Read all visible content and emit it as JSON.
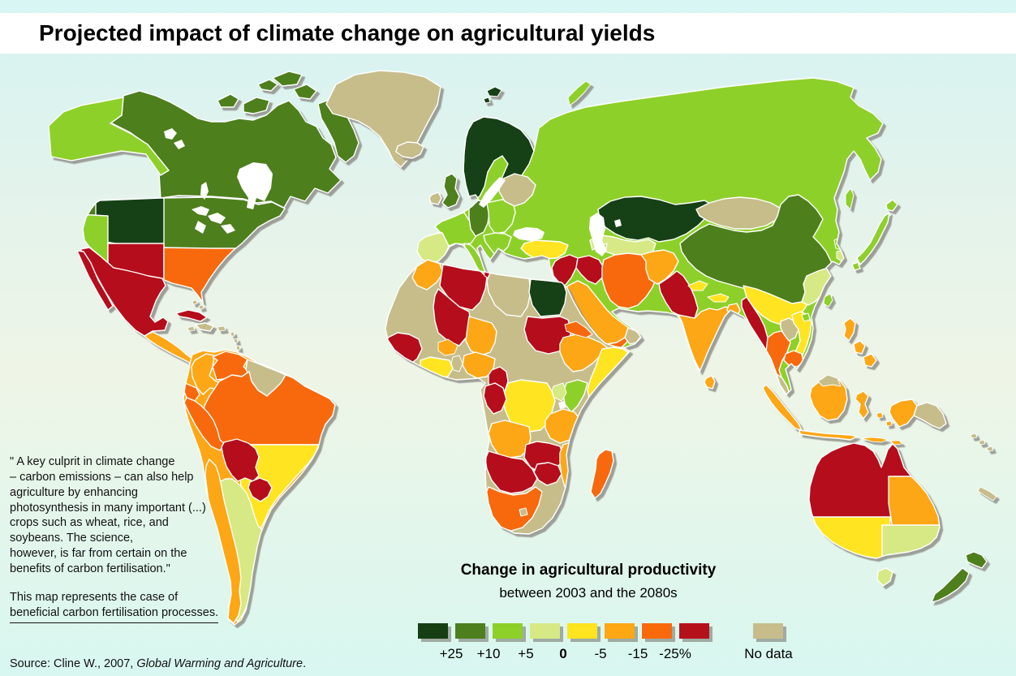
{
  "header": {
    "title": "Projected impact of climate change on agricultural yields"
  },
  "quote": {
    "lines": [
      "\" A key culprit in climate change",
      "– carbon emissions – can also help",
      "agriculture by enhancing",
      "photosynthesis in many important (...)",
      "crops such as wheat, rice, and",
      "soybeans. The science,",
      "however, is far from certain on the",
      "benefits of carbon fertilisation.\""
    ]
  },
  "note": {
    "lines": [
      "This map represents the case of",
      "beneficial carbon fertilisation processes."
    ]
  },
  "source": {
    "prefix": "Source: Cline W., 2007, ",
    "work": "Global Warming and Agriculture",
    "suffix": "."
  },
  "legend": {
    "title": "Change in agricultural productivity",
    "subtitle": "between 2003 and the 2080s",
    "boundary_labels": [
      "+25",
      "+10",
      "+5",
      "0",
      "-5",
      "-15",
      "-25%"
    ],
    "bold_label": "0",
    "no_data_label": "No data",
    "classes_order": [
      "p25",
      "p10",
      "p5",
      "z0",
      "m5",
      "m15",
      "m25",
      "m25plus"
    ],
    "palette": {
      "p25": "#153f13",
      "p10": "#4d7f1f",
      "p5": "#8ed02a",
      "z0": "#d6e985",
      "m5": "#ffe420",
      "m15": "#fda713",
      "m25": "#f8690b",
      "m25plus": "#b5111a",
      "nodata": "#c6bd8a"
    },
    "sea_color": "#ffffff",
    "border_color": "#ffffff",
    "shadow_color": "#90918a"
  },
  "map": {
    "regions": [
      {
        "id": "alaska",
        "class": "p5"
      },
      {
        "id": "canada",
        "class": "p10"
      },
      {
        "id": "arctic-islands",
        "class": "p10"
      },
      {
        "id": "greenland",
        "class": "nodata"
      },
      {
        "id": "us-base",
        "class": "p10"
      },
      {
        "id": "us-northwest",
        "class": "p25"
      },
      {
        "id": "us-california",
        "class": "p5"
      },
      {
        "id": "us-southwest",
        "class": "m25plus"
      },
      {
        "id": "us-southeast",
        "class": "m25"
      },
      {
        "id": "mexico",
        "class": "m25plus"
      },
      {
        "id": "baja",
        "class": "m25plus"
      },
      {
        "id": "central-america",
        "class": "m15"
      },
      {
        "id": "cuba",
        "class": "m25plus"
      },
      {
        "id": "hispaniola",
        "class": "nodata"
      },
      {
        "id": "caribbean-islands",
        "class": "nodata"
      },
      {
        "id": "sa-base",
        "class": "m15"
      },
      {
        "id": "colombia",
        "class": "m15"
      },
      {
        "id": "venezuela",
        "class": "m25"
      },
      {
        "id": "guianas",
        "class": "nodata"
      },
      {
        "id": "ecuador",
        "class": "m25"
      },
      {
        "id": "peru",
        "class": "m25"
      },
      {
        "id": "brazil-north",
        "class": "m25"
      },
      {
        "id": "brazil-south",
        "class": "m5"
      },
      {
        "id": "bolivia",
        "class": "m25plus"
      },
      {
        "id": "paraguay",
        "class": "m25plus"
      },
      {
        "id": "argentina",
        "class": "z0"
      },
      {
        "id": "chile",
        "class": "m15"
      },
      {
        "id": "uruguay",
        "class": "nodata"
      },
      {
        "id": "iceland",
        "class": "nodata"
      },
      {
        "id": "ireland",
        "class": "nodata"
      },
      {
        "id": "uk",
        "class": "p10"
      },
      {
        "id": "svalbard",
        "class": "p25"
      },
      {
        "id": "novaya-zemlya",
        "class": "p5"
      },
      {
        "id": "eurasia-base",
        "class": "p5"
      },
      {
        "id": "scandinavia",
        "class": "p25"
      },
      {
        "id": "iberia",
        "class": "z0"
      },
      {
        "id": "france",
        "class": "p5"
      },
      {
        "id": "germany",
        "class": "p10"
      },
      {
        "id": "central-europe",
        "class": "p5"
      },
      {
        "id": "baltics",
        "class": "nodata"
      },
      {
        "id": "balkans",
        "class": "p5"
      },
      {
        "id": "greece",
        "class": "p25"
      },
      {
        "id": "italy",
        "class": "p5"
      },
      {
        "id": "turkey",
        "class": "m5"
      },
      {
        "id": "kazakhstan",
        "class": "p25"
      },
      {
        "id": "central-asia",
        "class": "z0"
      },
      {
        "id": "levant",
        "class": "m25plus"
      },
      {
        "id": "iraq",
        "class": "m25plus"
      },
      {
        "id": "iran",
        "class": "m25"
      },
      {
        "id": "afghanistan",
        "class": "m15"
      },
      {
        "id": "pakistan",
        "class": "m25plus"
      },
      {
        "id": "india",
        "class": "m15"
      },
      {
        "id": "kashmir-nepal",
        "class": "m5"
      },
      {
        "id": "bangladesh",
        "class": "m15"
      },
      {
        "id": "sri-lanka",
        "class": "m15"
      },
      {
        "id": "saudi",
        "class": "m15"
      },
      {
        "id": "yemen",
        "class": "m25"
      },
      {
        "id": "oman",
        "class": "nodata"
      },
      {
        "id": "mongolia",
        "class": "nodata"
      },
      {
        "id": "china-north",
        "class": "p10"
      },
      {
        "id": "china-south",
        "class": "m5"
      },
      {
        "id": "china-southeast",
        "class": "z0"
      },
      {
        "id": "north-korea",
        "class": "p5"
      },
      {
        "id": "south-korea",
        "class": "z0"
      },
      {
        "id": "japan",
        "class": "p5"
      },
      {
        "id": "sakhalin",
        "class": "p5"
      },
      {
        "id": "taiwan",
        "class": "p5"
      },
      {
        "id": "hainan",
        "class": "p5"
      },
      {
        "id": "myanmar",
        "class": "m25plus"
      },
      {
        "id": "thailand",
        "class": "m25"
      },
      {
        "id": "laos",
        "class": "nodata"
      },
      {
        "id": "vietnam",
        "class": "m5"
      },
      {
        "id": "cambodia",
        "class": "m25"
      },
      {
        "id": "malay-peninsula",
        "class": "nodata"
      },
      {
        "id": "sumatra",
        "class": "m15"
      },
      {
        "id": "java",
        "class": "m15"
      },
      {
        "id": "borneo",
        "class": "m15"
      },
      {
        "id": "borneo-malaysia",
        "class": "nodata"
      },
      {
        "id": "sulawesi",
        "class": "m15"
      },
      {
        "id": "lesser-sunda",
        "class": "m15"
      },
      {
        "id": "philippines",
        "class": "m15"
      },
      {
        "id": "new-guinea-west",
        "class": "m15"
      },
      {
        "id": "new-guinea-east",
        "class": "nodata"
      },
      {
        "id": "solomons",
        "class": "nodata"
      },
      {
        "id": "new-caledonia",
        "class": "nodata"
      },
      {
        "id": "africa-base",
        "class": "nodata"
      },
      {
        "id": "morocco",
        "class": "m15"
      },
      {
        "id": "algeria",
        "class": "m25plus"
      },
      {
        "id": "tunisia",
        "class": "m25plus"
      },
      {
        "id": "libya",
        "class": "nodata"
      },
      {
        "id": "egypt",
        "class": "p25"
      },
      {
        "id": "mali",
        "class": "m25plus"
      },
      {
        "id": "niger",
        "class": "m15"
      },
      {
        "id": "sudan",
        "class": "m25plus"
      },
      {
        "id": "senegal-guinea",
        "class": "m25plus"
      },
      {
        "id": "sierra-liberia",
        "class": "m25"
      },
      {
        "id": "burkina",
        "class": "m15"
      },
      {
        "id": "ivory-ghana",
        "class": "m5"
      },
      {
        "id": "togo-benin",
        "class": "nodata"
      },
      {
        "id": "nigeria",
        "class": "m15"
      },
      {
        "id": "cameroon",
        "class": "m25plus"
      },
      {
        "id": "ethiopia",
        "class": "m15"
      },
      {
        "id": "eritrea",
        "class": "m25"
      },
      {
        "id": "somalia",
        "class": "m5"
      },
      {
        "id": "kenya",
        "class": "p5"
      },
      {
        "id": "uganda",
        "class": "z0"
      },
      {
        "id": "drc",
        "class": "m5"
      },
      {
        "id": "congo-gabon",
        "class": "m25plus"
      },
      {
        "id": "tanzania",
        "class": "m15"
      },
      {
        "id": "angola",
        "class": "m15"
      },
      {
        "id": "zambia",
        "class": "m25plus"
      },
      {
        "id": "malawi-mozambique",
        "class": "m15"
      },
      {
        "id": "zimbabwe",
        "class": "m25plus"
      },
      {
        "id": "namibia-botswana",
        "class": "m25plus"
      },
      {
        "id": "south-africa",
        "class": "m25"
      },
      {
        "id": "lesotho",
        "class": "nodata"
      },
      {
        "id": "madagascar",
        "class": "m25"
      },
      {
        "id": "australia-base",
        "class": "m25plus"
      },
      {
        "id": "australia-northeast",
        "class": "m15"
      },
      {
        "id": "australia-southwest",
        "class": "m5"
      },
      {
        "id": "australia-southeast",
        "class": "z0"
      },
      {
        "id": "tasmania",
        "class": "z0"
      },
      {
        "id": "new-zealand",
        "class": "p10"
      }
    ]
  }
}
